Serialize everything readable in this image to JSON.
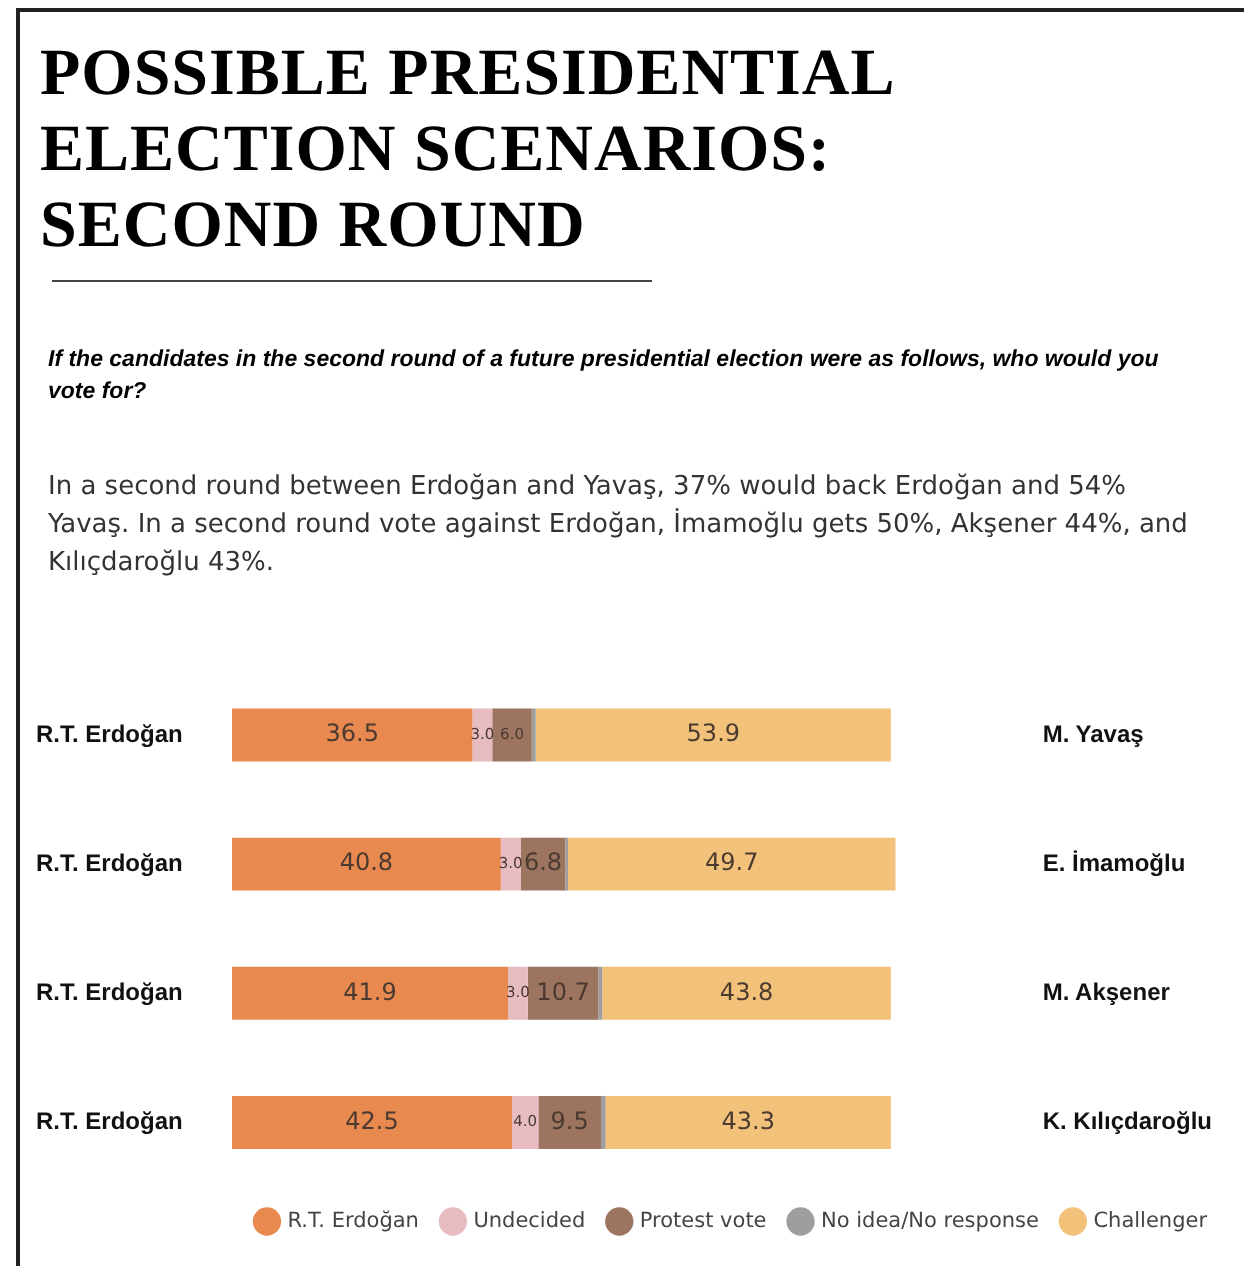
{
  "chart_data": {
    "type": "bar",
    "orientation": "horizontal",
    "stacked": true,
    "title": "POSSIBLE PRESIDENTIAL ELECTION SCENARIOS: SECOND ROUND",
    "subtitle": "If the candidates in the second round of a future presidential election were as follows, who would you vote for?",
    "categories": [
      "M. Yavaş",
      "E. İmamoğlu",
      "M. Akşener",
      "K. Kılıçdaroğlu"
    ],
    "series": [
      {
        "name": "R.T. Erdoğan",
        "color": "#e8894f",
        "values": [
          36.5,
          40.8,
          41.9,
          42.5
        ],
        "value_labels": [
          "36.5",
          "40.8",
          "41.9",
          "42.5"
        ]
      },
      {
        "name": "Undecided",
        "color": "#e6bcc0",
        "values": [
          3.0,
          3.0,
          3.0,
          4.0
        ],
        "value_labels": [
          "3.0",
          "3.0",
          "3.0",
          "4.0"
        ]
      },
      {
        "name": "Protest vote",
        "color": "#9c7460",
        "values": [
          6.0,
          6.8,
          10.7,
          9.5
        ],
        "value_labels": [
          "6.0",
          "6.8",
          "10.7",
          "9.5"
        ]
      },
      {
        "name": "No idea/No response",
        "color": "#9e9e9e",
        "values": [
          0.6,
          0.4,
          0.6,
          0.7
        ],
        "value_labels": [
          null,
          null,
          null,
          null
        ]
      },
      {
        "name": "Challenger",
        "color": "#f2c27a",
        "values": [
          53.9,
          49.7,
          43.8,
          43.3
        ],
        "value_labels": [
          "53.9",
          "49.7",
          "43.8",
          "43.3"
        ]
      }
    ],
    "annotations": [
      "In a second round between Erdoğan and Yavaş, 37% would back Erdoğan and 54% Yavaş. In a second round vote against Erdoğan, İmamoğlu gets 50%, Akşener 44%, and Kılıçdaroğlu 43%.",
      "R.T. Erdoğan",
      "R.T. Erdoğan",
      "R.T. Erdoğan",
      "R.T. Erdoğan"
    ],
    "legend": "bottom",
    "grid": false,
    "tick_labels": "y"
  }
}
